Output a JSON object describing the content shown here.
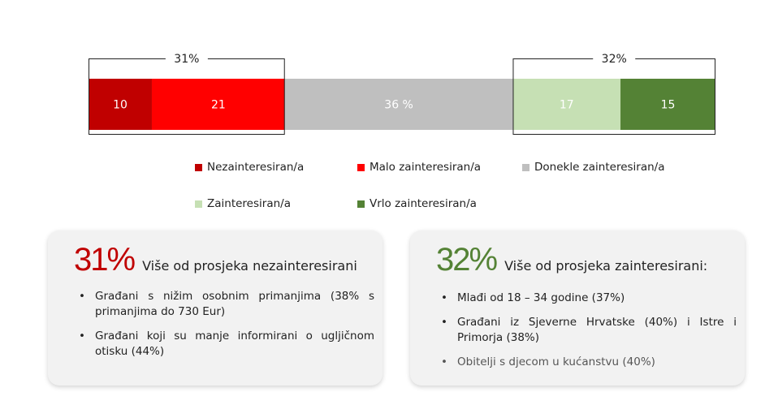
{
  "chart_data": {
    "type": "bar",
    "orientation": "horizontal-stacked",
    "categories": [
      "Nezainteresiran/a",
      "Malo zainteresiran/a",
      "Donekle zainteresiran/a",
      "Zainteresiran/a",
      "Vrlo zainteresiran/a"
    ],
    "values": [
      10,
      21,
      36,
      17,
      15
    ],
    "labels": [
      "10",
      "21",
      "36 %",
      "17",
      "15"
    ],
    "colors": [
      "#c00000",
      "#ff0000",
      "#bfbfbf",
      "#c6e0b4",
      "#548235"
    ],
    "brackets": [
      {
        "label": "31%",
        "from": 0,
        "to": 1
      },
      {
        "label": "32%",
        "from": 3,
        "to": 4
      }
    ],
    "legend_position": "bottom",
    "grid": false
  },
  "left_card": {
    "pct": "31%",
    "pct_color": "#c00000",
    "title": "Više od prosjeka nezainteresirani",
    "bullets": [
      "Građani s nižim osobnim primanjima (38% s primanjima do 730 Eur)",
      "Građani koji su manje informirani o ugljičnom otisku (44%)"
    ]
  },
  "right_card": {
    "pct": "32%",
    "pct_color": "#548235",
    "title": "Više od prosjeka zainteresirani:",
    "bullets": [
      "Mlađi od 18 – 34 godine (37%)",
      "Građani iz Sjeverne Hrvatske (40%) i Istre i Primorja (38%)",
      "Obitelji s djecom u kućanstvu (40%)"
    ]
  }
}
